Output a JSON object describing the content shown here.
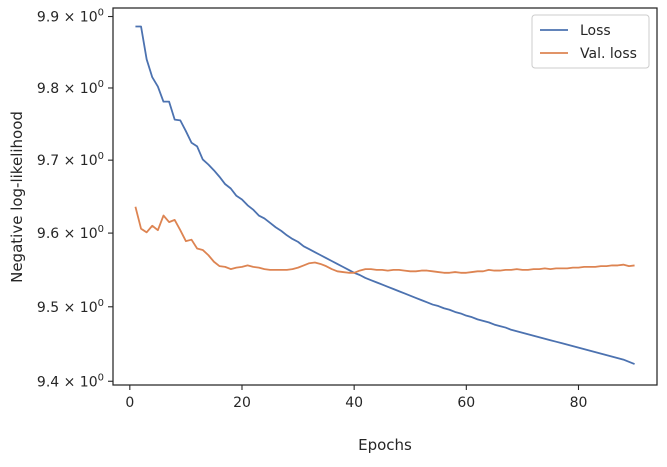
{
  "chart_data": {
    "type": "line",
    "title": "",
    "xlabel": "Epochs",
    "ylabel": "Negative log-likelihood",
    "xlim": [
      -3,
      94
    ],
    "ylim": [
      9.395,
      9.912
    ],
    "yscale": "log",
    "grid": false,
    "legend_position": "top-right",
    "x_ticks": [
      0,
      20,
      40,
      60,
      80
    ],
    "y_ticks": [
      {
        "value": 9.4,
        "mantissa": "9.4",
        "base": "10",
        "exp": "0"
      },
      {
        "value": 9.5,
        "mantissa": "9.5",
        "base": "10",
        "exp": "0"
      },
      {
        "value": 9.6,
        "mantissa": "9.6",
        "base": "10",
        "exp": "0"
      },
      {
        "value": 9.7,
        "mantissa": "9.7",
        "base": "10",
        "exp": "0"
      },
      {
        "value": 9.8,
        "mantissa": "9.8",
        "base": "10",
        "exp": "0"
      },
      {
        "value": 9.9,
        "mantissa": "9.9",
        "base": "10",
        "exp": "0"
      }
    ],
    "series": [
      {
        "name": "Loss",
        "color": "#4c72b0",
        "x": [
          1,
          2,
          3,
          4,
          5,
          6,
          7,
          8,
          9,
          10,
          11,
          12,
          13,
          14,
          15,
          16,
          17,
          18,
          19,
          20,
          21,
          22,
          23,
          24,
          25,
          26,
          27,
          28,
          29,
          30,
          31,
          32,
          33,
          34,
          35,
          36,
          37,
          38,
          39,
          40,
          41,
          42,
          43,
          44,
          45,
          46,
          47,
          48,
          49,
          50,
          51,
          52,
          53,
          54,
          55,
          56,
          57,
          58,
          59,
          60,
          61,
          62,
          63,
          64,
          65,
          66,
          67,
          68,
          69,
          70,
          71,
          72,
          73,
          74,
          75,
          76,
          77,
          78,
          79,
          80,
          81,
          82,
          83,
          84,
          85,
          86,
          87,
          88,
          89,
          90
        ],
        "values": [
          9.886,
          9.886,
          9.84,
          9.815,
          9.802,
          9.781,
          9.781,
          9.756,
          9.755,
          9.74,
          9.724,
          9.719,
          9.701,
          9.694,
          9.686,
          9.677,
          9.667,
          9.661,
          9.651,
          9.646,
          9.638,
          9.632,
          9.624,
          9.62,
          9.614,
          9.608,
          9.603,
          9.597,
          9.592,
          9.588,
          9.582,
          9.578,
          9.574,
          9.57,
          9.566,
          9.562,
          9.558,
          9.554,
          9.55,
          9.546,
          9.543,
          9.539,
          9.536,
          9.533,
          9.53,
          9.527,
          9.524,
          9.521,
          9.518,
          9.515,
          9.512,
          9.509,
          9.506,
          9.503,
          9.501,
          9.498,
          9.496,
          9.493,
          9.491,
          9.488,
          9.486,
          9.483,
          9.481,
          9.479,
          9.476,
          9.474,
          9.472,
          9.469,
          9.467,
          9.465,
          9.463,
          9.461,
          9.459,
          9.457,
          9.455,
          9.453,
          9.451,
          9.449,
          9.447,
          9.445,
          9.443,
          9.441,
          9.439,
          9.437,
          9.435,
          9.433,
          9.431,
          9.429,
          9.426,
          9.423
        ]
      },
      {
        "name": "Val. loss",
        "color": "#dd8452",
        "x": [
          1,
          2,
          3,
          4,
          5,
          6,
          7,
          8,
          9,
          10,
          11,
          12,
          13,
          14,
          15,
          16,
          17,
          18,
          19,
          20,
          21,
          22,
          23,
          24,
          25,
          26,
          27,
          28,
          29,
          30,
          31,
          32,
          33,
          34,
          35,
          36,
          37,
          38,
          39,
          40,
          41,
          42,
          43,
          44,
          45,
          46,
          47,
          48,
          49,
          50,
          51,
          52,
          53,
          54,
          55,
          56,
          57,
          58,
          59,
          60,
          61,
          62,
          63,
          64,
          65,
          66,
          67,
          68,
          69,
          70,
          71,
          72,
          73,
          74,
          75,
          76,
          77,
          78,
          79,
          80,
          81,
          82,
          83,
          84,
          85,
          86,
          87,
          88,
          89,
          90
        ],
        "values": [
          9.636,
          9.606,
          9.601,
          9.61,
          9.604,
          9.624,
          9.615,
          9.618,
          9.604,
          9.589,
          9.591,
          9.579,
          9.577,
          9.57,
          9.561,
          9.555,
          9.554,
          9.551,
          9.553,
          9.554,
          9.556,
          9.554,
          9.553,
          9.551,
          9.55,
          9.55,
          9.55,
          9.55,
          9.551,
          9.553,
          9.556,
          9.559,
          9.56,
          9.558,
          9.555,
          9.551,
          9.548,
          9.547,
          9.546,
          9.546,
          9.549,
          9.551,
          9.551,
          9.55,
          9.55,
          9.549,
          9.55,
          9.55,
          9.549,
          9.548,
          9.548,
          9.549,
          9.549,
          9.548,
          9.547,
          9.546,
          9.546,
          9.547,
          9.546,
          9.546,
          9.547,
          9.548,
          9.548,
          9.55,
          9.549,
          9.549,
          9.55,
          9.55,
          9.551,
          9.55,
          9.55,
          9.551,
          9.551,
          9.552,
          9.551,
          9.552,
          9.552,
          9.552,
          9.553,
          9.553,
          9.554,
          9.554,
          9.554,
          9.555,
          9.555,
          9.556,
          9.556,
          9.557,
          9.555,
          9.556
        ]
      }
    ]
  }
}
